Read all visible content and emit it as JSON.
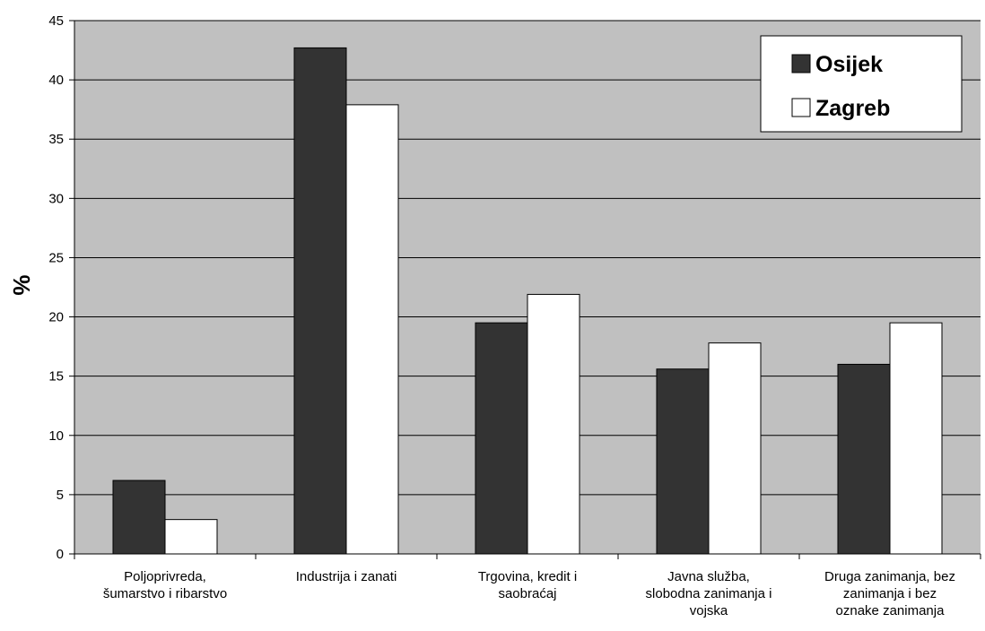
{
  "chart_data": {
    "type": "bar",
    "title": "",
    "xlabel": "",
    "ylabel": "%",
    "ylim": [
      0,
      45
    ],
    "yticks": [
      0,
      5,
      10,
      15,
      20,
      25,
      30,
      35,
      40,
      45
    ],
    "grid": true,
    "legend_position": "top-right",
    "categories": [
      [
        "Poljoprivreda,",
        "šumarstvo i ribarstvo"
      ],
      [
        "Industrija i zanati"
      ],
      [
        "Trgovina, kredit i",
        "saobraćaj"
      ],
      [
        "Javna služba,",
        "slobodna zanimanja i",
        "vojska"
      ],
      [
        "Druga zanimanja, bez",
        "zanimanja i bez",
        "oznake zanimanja"
      ]
    ],
    "series": [
      {
        "name": "Osijek",
        "color": "#333333",
        "values": [
          6.2,
          42.7,
          19.5,
          15.6,
          16.0
        ]
      },
      {
        "name": "Zagreb",
        "color": "#ffffff",
        "values": [
          2.9,
          37.9,
          21.9,
          17.8,
          19.5
        ]
      }
    ],
    "plot_background": "#c0c0c0"
  }
}
